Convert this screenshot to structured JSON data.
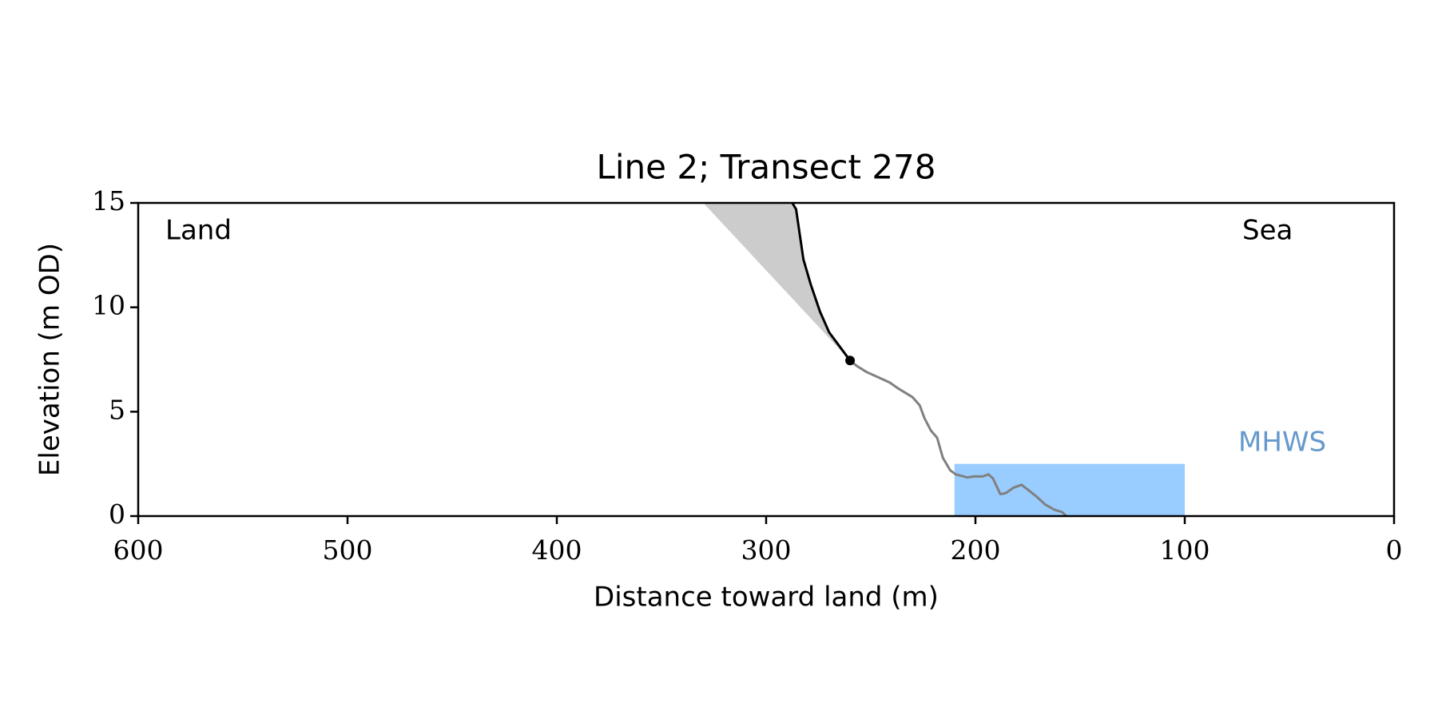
{
  "chart_data": {
    "type": "line",
    "title": "Line 2; Transect 278",
    "x_label": "Distance toward land (m)",
    "y_label": "Elevation (m OD)",
    "xlim": [
      600,
      0
    ],
    "ylim": [
      0,
      15
    ],
    "xticks": [
      600,
      500,
      400,
      300,
      200,
      100,
      0
    ],
    "yticks": [
      0,
      5,
      10,
      15
    ],
    "annotations": [
      "Land",
      "Sea"
    ],
    "shaded_area": {
      "color": "#cccccc",
      "x": [
        330,
        259.9,
        264.7,
        269.9,
        274.3,
        278.7,
        282.2,
        285.7,
        287.5
      ],
      "values": [
        15,
        7.45,
        8.1,
        8.8,
        9.8,
        11.1,
        12.3,
        14.7,
        15
      ]
    },
    "mhws": {
      "label": "MHWS",
      "value": 2.5,
      "x_range": [
        210,
        100
      ],
      "color": "#99ccff",
      "label_color": "#6699cc"
    },
    "series": [
      {
        "color": "#808080",
        "x": [
          259.9,
          256.8,
          252,
          245.4,
          241,
          236.7,
          230.1,
          226.6,
          224.4,
          221.3,
          218.3,
          215.6,
          212.1,
          209.5,
          203.8,
          200.7,
          196.4,
          193.8,
          191.6,
          188.1,
          185.5,
          182,
          178,
          175.4,
          171,
          166.6,
          162.2,
          158.7,
          156.5
        ],
        "values": [
          7.45,
          7.2,
          6.9,
          6.6,
          6.4,
          6.1,
          5.7,
          5.3,
          4.7,
          4.1,
          3.75,
          2.8,
          2.2,
          2.0,
          1.85,
          1.9,
          1.9,
          2.0,
          1.8,
          1.05,
          1.1,
          1.35,
          1.5,
          1.3,
          0.95,
          0.55,
          0.3,
          0.2,
          0
        ]
      },
      {
        "color": "#000000",
        "x": [
          287.5,
          285.7,
          282.2,
          278.7,
          274.3,
          269.9,
          264.7,
          259.9
        ],
        "values": [
          15,
          14.7,
          12.3,
          11.1,
          9.8,
          8.8,
          8.1,
          7.45
        ]
      }
    ],
    "cliff_top": {
      "x": 259.9,
      "y": 7.45,
      "color": "#000000"
    }
  }
}
